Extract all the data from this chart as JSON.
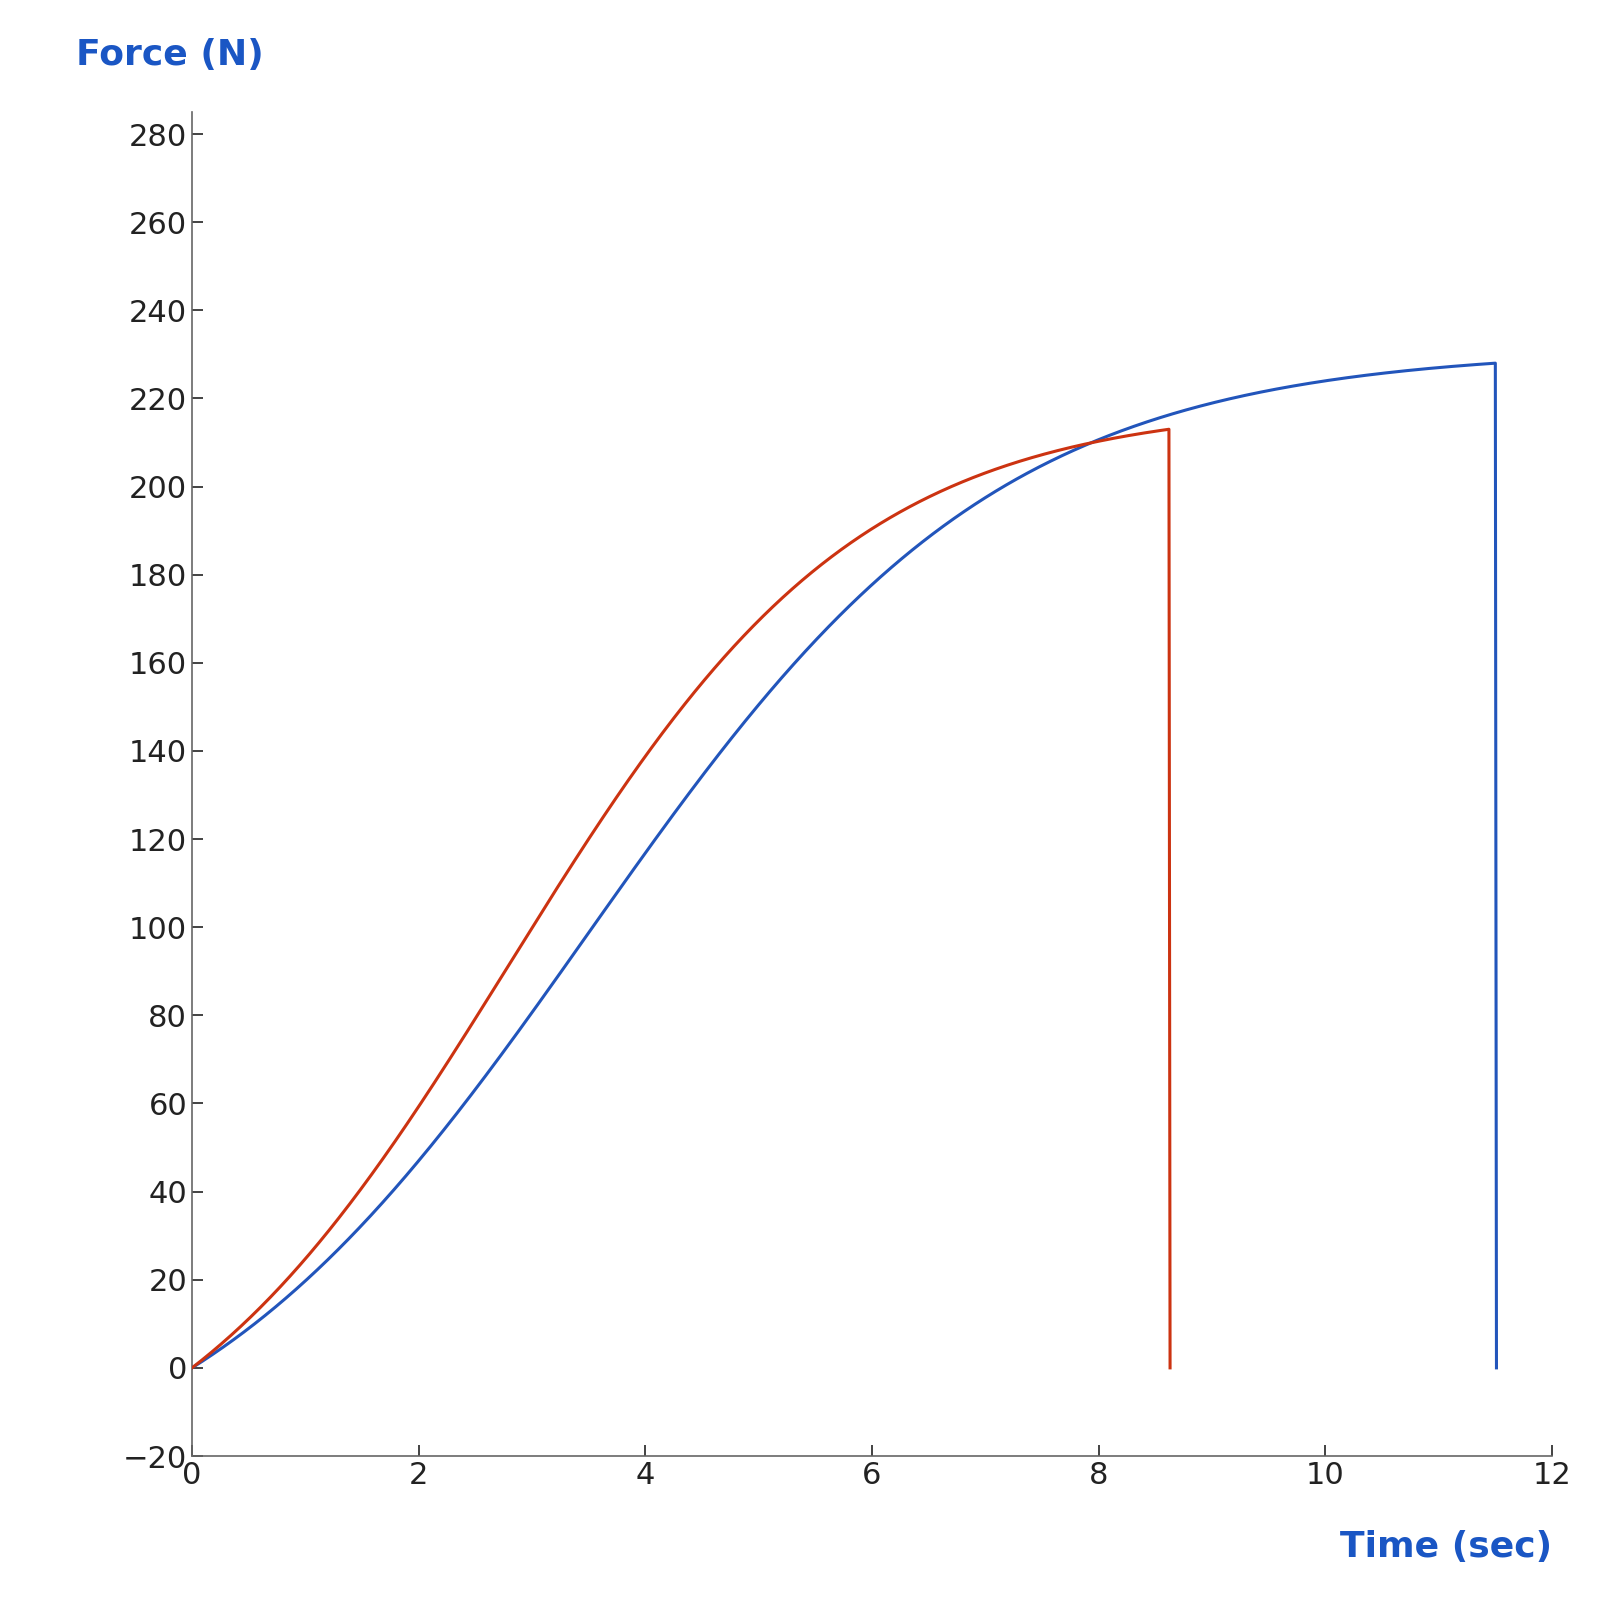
{
  "xlabel": "Time (sec)",
  "ylabel": "Force (N)",
  "xlabel_color": "#1a56c4",
  "ylabel_color": "#1a56c4",
  "tick_label_color": "#222222",
  "axis_color": "#666666",
  "xlim": [
    0,
    12
  ],
  "ylim": [
    -20,
    285
  ],
  "xticks": [
    0,
    2,
    4,
    6,
    8,
    10,
    12
  ],
  "yticks": [
    -20,
    0,
    20,
    40,
    60,
    80,
    100,
    120,
    140,
    160,
    180,
    200,
    220,
    240,
    260,
    280
  ],
  "blue_color": "#2255bb",
  "red_color": "#cc3311",
  "line_width": 2.2,
  "blue_peak_time": 11.5,
  "blue_peak_force": 228,
  "red_peak_time": 8.62,
  "red_peak_force": 213,
  "xlabel_fontsize": 26,
  "ylabel_fontsize": 26,
  "tick_fontsize": 22,
  "blue_sigmoid_k": 0.55,
  "blue_sigmoid_t0": 3.5,
  "red_sigmoid_k": 0.65,
  "red_sigmoid_t0": 2.8
}
